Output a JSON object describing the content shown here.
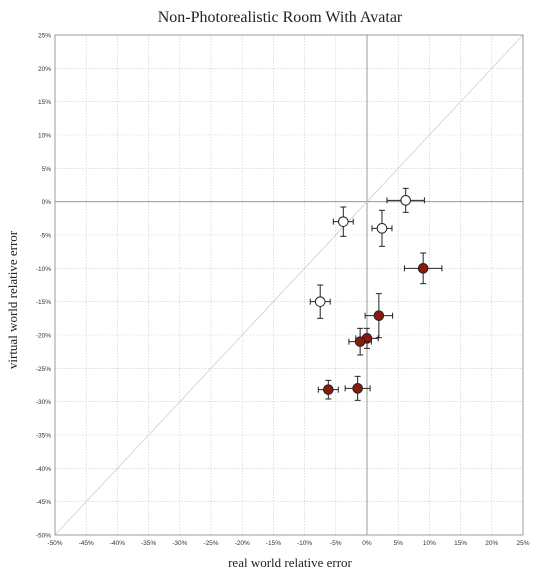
{
  "chart_data": {
    "type": "scatter",
    "title": "Non-Photorealistic Room With Avatar",
    "xlabel": "real world relative error",
    "ylabel": "virtual world relative error",
    "xlim": [
      -50,
      25
    ],
    "ylim": [
      -50,
      25
    ],
    "tick_step": 5,
    "x_tick_labels": [
      "-50%",
      "-45%",
      "-40%",
      "-35%",
      "-30%",
      "-25%",
      "-20%",
      "-15%",
      "-10%",
      "-5%",
      "0%",
      "5%",
      "10%",
      "15%",
      "20%",
      "25%"
    ],
    "y_tick_labels": [
      "-50%",
      "-45%",
      "-40%",
      "-35%",
      "-30%",
      "-25%",
      "-20%",
      "-15%",
      "-10%",
      "-5%",
      "0%",
      "5%",
      "10%",
      "15%",
      "20%",
      "25%"
    ],
    "grid": true,
    "reference_line": "y = x",
    "series": [
      {
        "color": "#ffffff",
        "points": [
          {
            "x": -3.8,
            "y": -3.0,
            "xerr": 1.6,
            "yerr": 2.2
          },
          {
            "x": 6.2,
            "y": 0.2,
            "xerr": 3.0,
            "yerr": 1.8
          },
          {
            "x": 2.4,
            "y": -4.0,
            "xerr": 1.6,
            "yerr": 2.7
          },
          {
            "x": -7.5,
            "y": -15.0,
            "xerr": 1.6,
            "yerr": 2.5
          }
        ]
      },
      {
        "color": "#8b1a0e",
        "points": [
          {
            "x": 9.0,
            "y": -10.0,
            "xerr": 3.0,
            "yerr": 2.3
          },
          {
            "x": 1.9,
            "y": -17.1,
            "xerr": 2.2,
            "yerr": 3.3
          },
          {
            "x": 0.0,
            "y": -20.5,
            "xerr": 1.8,
            "yerr": 1.5
          },
          {
            "x": -1.1,
            "y": -21.0,
            "xerr": 1.8,
            "yerr": 2.0
          },
          {
            "x": -6.2,
            "y": -28.2,
            "xerr": 1.6,
            "yerr": 1.4
          },
          {
            "x": -1.5,
            "y": -28.0,
            "xerr": 2.0,
            "yerr": 1.8
          }
        ]
      }
    ]
  }
}
